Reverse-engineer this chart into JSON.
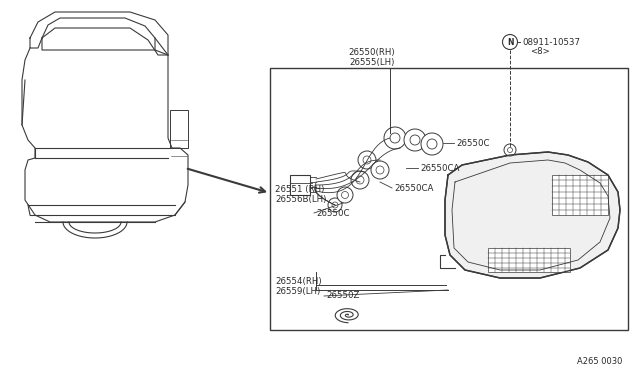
{
  "bg_color": "#ffffff",
  "line_color": "#3a3a3a",
  "text_color": "#2a2a2a",
  "fig_width": 6.4,
  "fig_height": 3.72,
  "labels": {
    "lbl_26550": "26550(RH)\n26555(LH)",
    "lbl_08911": "08911-10537",
    "lbl_08911b": "<8>",
    "lbl_N": "N",
    "lbl_26551": "26551 (RH)\n26556B(LH)",
    "lbl_26550c_r": "26550C",
    "lbl_26550ca_t": "26550CA",
    "lbl_26550ca_b": "26550CA",
    "lbl_26550c_l": "26550C",
    "lbl_26554": "26554(RH)\n26559(LH)",
    "lbl_26550z": "26550Z",
    "footnote": "A265 0030"
  }
}
